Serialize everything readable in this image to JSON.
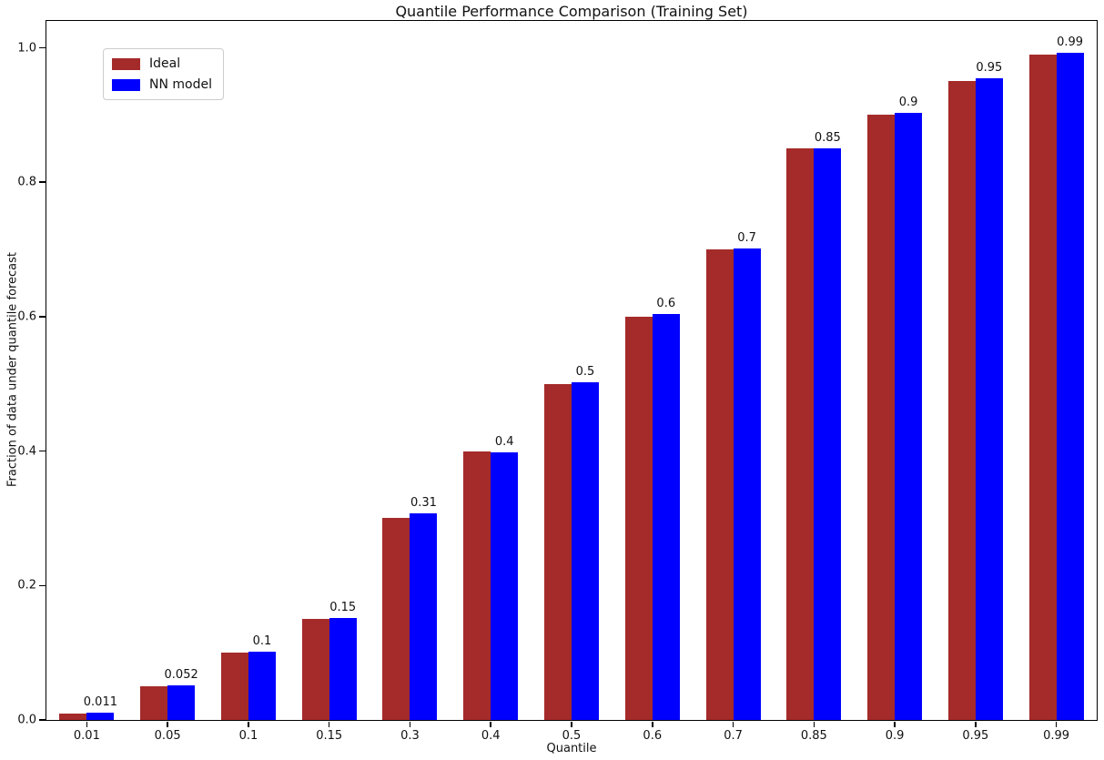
{
  "chart_data": {
    "type": "bar",
    "title": "Quantile Performance Comparison (Training Set)",
    "xlabel": "Quantile",
    "ylabel": "Fraction of data under quantile forecast",
    "categories": [
      "0.01",
      "0.05",
      "0.1",
      "0.15",
      "0.3",
      "0.4",
      "0.5",
      "0.6",
      "0.7",
      "0.85",
      "0.9",
      "0.95",
      "0.99"
    ],
    "series": [
      {
        "name": "Ideal",
        "color": "#a52a2a",
        "values": [
          0.01,
          0.05,
          0.1,
          0.15,
          0.3,
          0.4,
          0.5,
          0.6,
          0.7,
          0.85,
          0.9,
          0.95,
          0.99
        ]
      },
      {
        "name": "NN model",
        "color": "#0000ff",
        "values": [
          0.011,
          0.052,
          0.102,
          0.152,
          0.307,
          0.398,
          0.503,
          0.604,
          0.701,
          0.851,
          0.903,
          0.955,
          0.992
        ]
      }
    ],
    "bar_labels": [
      "0.011",
      "0.052",
      "0.1",
      "0.15",
      "0.31",
      "0.4",
      "0.5",
      "0.6",
      "0.7",
      "0.85",
      "0.9",
      "0.95",
      "0.99"
    ],
    "yticks": [
      "0.0",
      "0.2",
      "0.4",
      "0.6",
      "0.8",
      "1.0"
    ],
    "ylim": [
      0,
      1.04
    ],
    "legend_position": "upper left",
    "grid": false,
    "axis_color": "#000000"
  }
}
